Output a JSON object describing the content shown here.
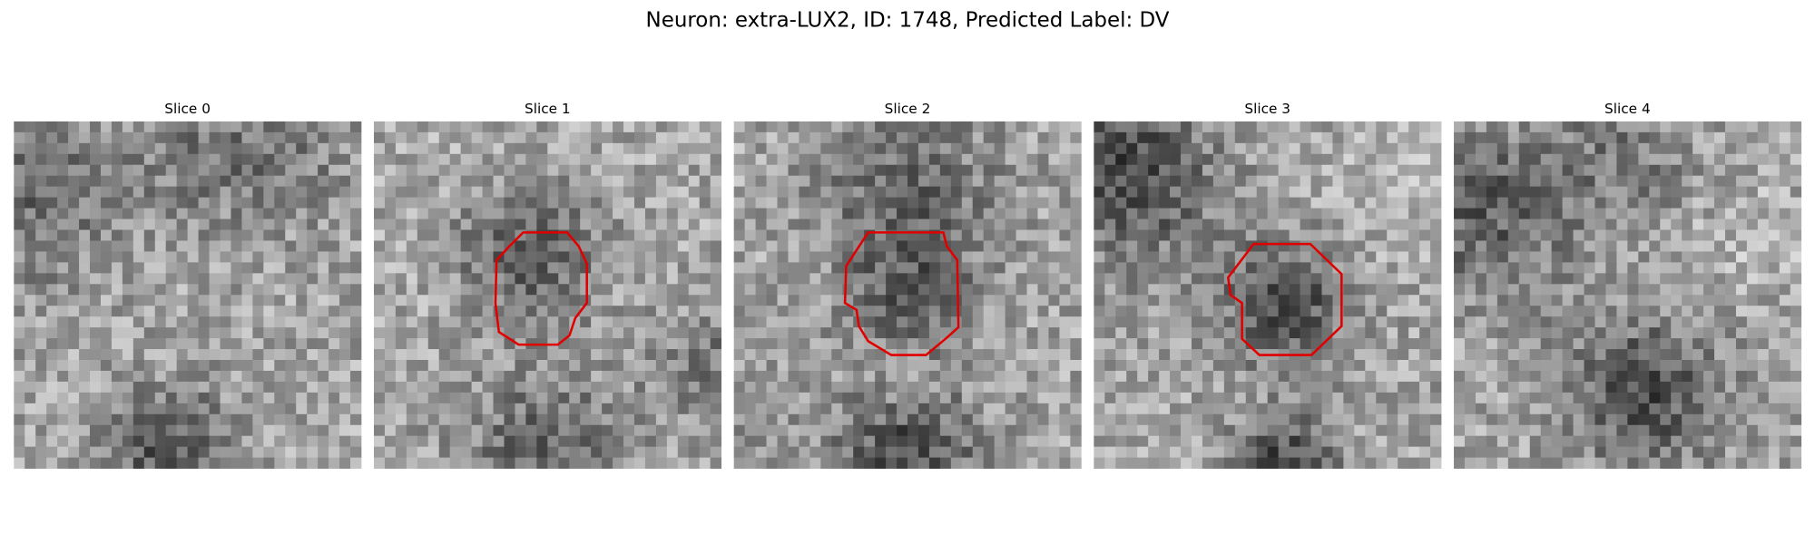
{
  "title": "Neuron: extra-LUX2, ID: 1748, Predicted Label: DV",
  "panels": [
    {
      "title": "Slice 0"
    },
    {
      "title": "Slice 1"
    },
    {
      "title": "Slice 2"
    },
    {
      "title": "Slice 3"
    },
    {
      "title": "Slice 4"
    }
  ]
}
